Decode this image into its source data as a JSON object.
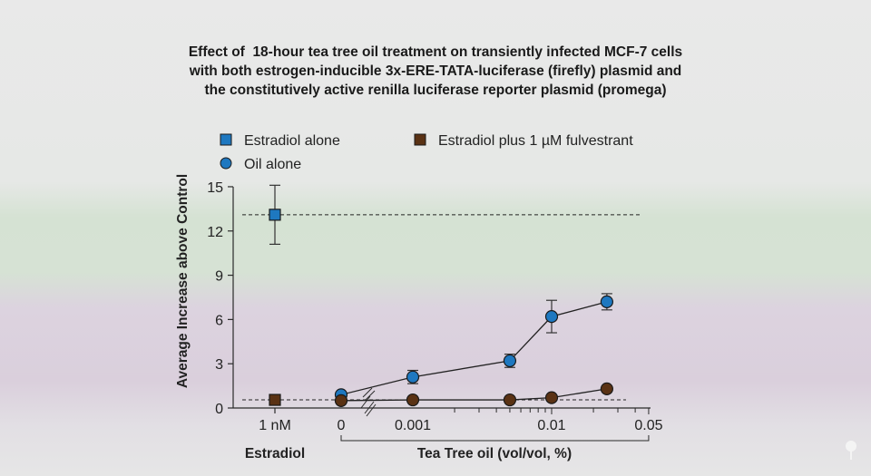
{
  "title_lines": [
    "Effect of  18-hour tea tree oil treatment on transiently infected MCF-7 cells",
    "with both estrogen-inducible 3x-ERE-TATA-luciferase (firefly) plasmid and",
    "the constitutively active renilla luciferase reporter plasmid (promega)"
  ],
  "chart_data": {
    "type": "scatter",
    "ylabel": "Average Increase above Control",
    "ylim": [
      0,
      15
    ],
    "yticks": [
      "0",
      "3",
      "6",
      "9",
      "12",
      "15"
    ],
    "xscale": "log (broken axis; 0 shown separately)",
    "x_groups": [
      {
        "label": "Estradiol",
        "ticks": [
          "1 nM"
        ]
      },
      {
        "label": "Tea Tree oil (vol/vol, %)",
        "ticks": [
          "0",
          "0.001",
          "0.01",
          "0.05"
        ]
      }
    ],
    "legend": [
      {
        "label": "Estradiol alone",
        "marker": "square",
        "color": "#1e78c0"
      },
      {
        "label": "Estradiol plus 1 µM fulvestrant",
        "marker": "square",
        "color": "#5a3214"
      },
      {
        "label": "Oil alone",
        "marker": "circle",
        "color": "#1e78c0"
      }
    ],
    "estradiol_points": [
      {
        "name": "Estradiol alone",
        "x": "1 nM",
        "y": 13.1,
        "err": 2.0,
        "color": "#1e78c0",
        "reference_line": true
      },
      {
        "name": "Estradiol plus 1 µM fulvestrant",
        "x": "1 nM",
        "y": 0.55,
        "err": 0,
        "color": "#5a3214",
        "reference_line": true
      }
    ],
    "series": [
      {
        "name": "Oil alone",
        "color": "#1e78c0",
        "x": [
          0,
          0.001,
          0.005,
          0.01,
          0.025
        ],
        "y": [
          0.9,
          2.1,
          3.2,
          6.2,
          7.2
        ],
        "err": [
          0,
          0.45,
          0.45,
          1.1,
          0.55
        ]
      },
      {
        "color": "#5a3214",
        "x": [
          0,
          0.001,
          0.005,
          0.01,
          0.025
        ],
        "y": [
          0.5,
          0.55,
          0.55,
          0.7,
          1.3
        ],
        "err": [
          0,
          0,
          0,
          0,
          0
        ]
      }
    ],
    "grid": false
  },
  "logo": "tree-icon"
}
